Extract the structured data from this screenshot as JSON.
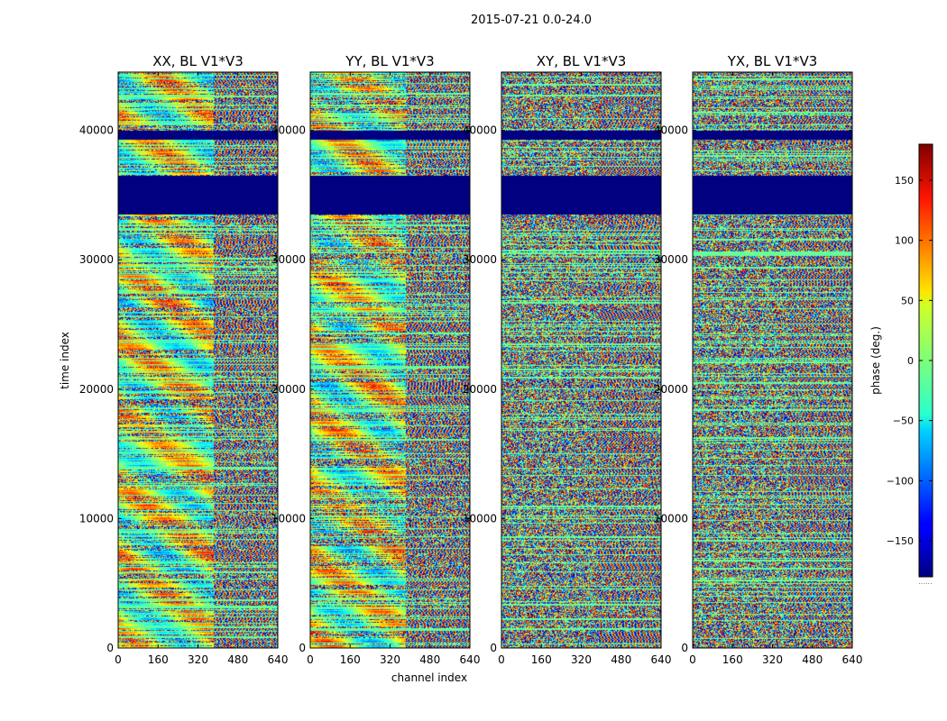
{
  "figure": {
    "suptitle": "2015-07-21 0.0-24.0",
    "xlabel": "channel index",
    "ylabel": "time index",
    "colorbar_label": "phase (deg.)",
    "colorbar_footer": "......"
  },
  "chart_data": [
    {
      "type": "heatmap",
      "title": "XX, BL V1*V3",
      "xlabel": "channel index",
      "ylabel": "time index",
      "x_ticks": [
        0,
        160,
        320,
        480,
        640
      ],
      "y_ticks": [
        0,
        10000,
        20000,
        30000,
        40000
      ],
      "x_tick_labels": [
        "0",
        "160",
        "320",
        "480",
        "640"
      ],
      "y_tick_labels": [
        "0",
        "10000",
        "20000",
        "30000",
        "40000"
      ],
      "xlim": [
        0,
        640
      ],
      "ylim": [
        0,
        44500
      ],
      "value": "phase (deg.)",
      "value_range": [
        -180,
        180
      ]
    },
    {
      "type": "heatmap",
      "title": "YY, BL V1*V3",
      "xlabel": "channel index",
      "ylabel": "",
      "x_ticks": [
        0,
        160,
        320,
        480,
        640
      ],
      "y_ticks": [
        0,
        10000,
        20000,
        30000,
        40000
      ],
      "x_tick_labels": [
        "0",
        "160",
        "320",
        "480",
        "640"
      ],
      "y_tick_labels": [
        "0",
        "10000",
        "20000",
        "30000",
        "40000"
      ],
      "xlim": [
        0,
        640
      ],
      "ylim": [
        0,
        44500
      ],
      "value": "phase (deg.)",
      "value_range": [
        -180,
        180
      ]
    },
    {
      "type": "heatmap",
      "title": "XY, BL V1*V3",
      "xlabel": "channel index",
      "ylabel": "",
      "x_ticks": [
        0,
        160,
        320,
        480,
        640
      ],
      "y_ticks": [
        0,
        10000,
        20000,
        30000,
        40000
      ],
      "x_tick_labels": [
        "0",
        "160",
        "320",
        "480",
        "640"
      ],
      "y_tick_labels": [
        "0",
        "10000",
        "20000",
        "30000",
        "40000"
      ],
      "xlim": [
        0,
        640
      ],
      "ylim": [
        0,
        44500
      ],
      "value": "phase (deg.)",
      "value_range": [
        -180,
        180
      ]
    },
    {
      "type": "heatmap",
      "title": "YX, BL V1*V3",
      "xlabel": "channel index",
      "ylabel": "",
      "x_ticks": [
        0,
        160,
        320,
        480,
        640
      ],
      "y_ticks": [
        0,
        10000,
        20000,
        30000,
        40000
      ],
      "x_tick_labels": [
        "0",
        "160",
        "320",
        "480",
        "640"
      ],
      "y_tick_labels": [
        "0",
        "10000",
        "20000",
        "30000",
        "40000"
      ],
      "xlim": [
        0,
        640
      ],
      "ylim": [
        0,
        44500
      ],
      "value": "phase (deg.)",
      "value_range": [
        -180,
        180
      ]
    }
  ],
  "colorbar": {
    "range": [
      -180,
      180
    ],
    "ticks": [
      150,
      100,
      50,
      0,
      -50,
      -100,
      -150
    ],
    "tick_labels": [
      "150",
      "100",
      "50",
      "0",
      "−50",
      "−100",
      "−150"
    ],
    "colormap": "jet"
  }
}
